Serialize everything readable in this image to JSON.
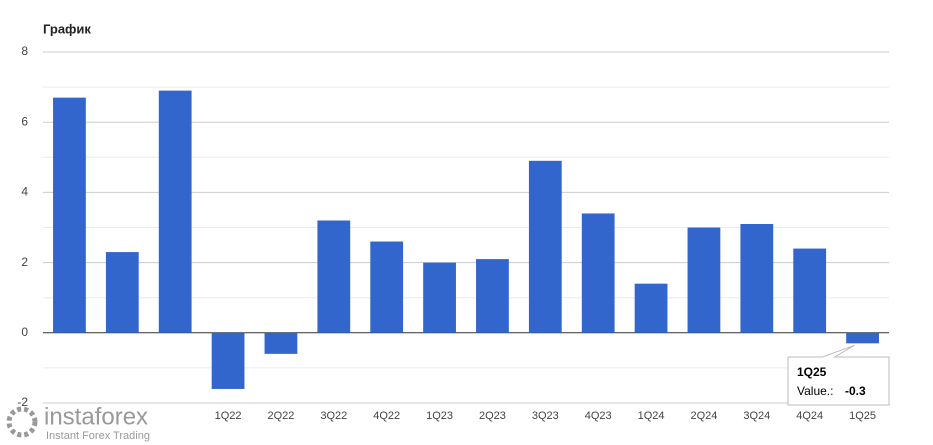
{
  "chart_data": {
    "type": "bar",
    "title": "График",
    "categories": [
      null,
      null,
      null,
      "1Q22",
      "2Q22",
      "3Q22",
      "4Q22",
      "1Q23",
      "2Q23",
      "3Q23",
      "4Q23",
      "1Q24",
      "2Q24",
      "3Q24",
      "4Q24",
      "1Q25"
    ],
    "values": [
      6.7,
      2.3,
      6.9,
      -1.6,
      -0.6,
      3.2,
      2.6,
      2.0,
      2.1,
      4.9,
      3.4,
      1.4,
      3.0,
      3.1,
      2.4,
      -0.3
    ],
    "color": "#3366cc",
    "ylim": [
      -2,
      8
    ],
    "yticks": [
      -2,
      0,
      2,
      4,
      6,
      8
    ],
    "grid": true,
    "tooltip": {
      "label": "Value.:"
    }
  },
  "watermark": {
    "brand": "instaforex",
    "tagline": "Instant Forex Trading"
  }
}
